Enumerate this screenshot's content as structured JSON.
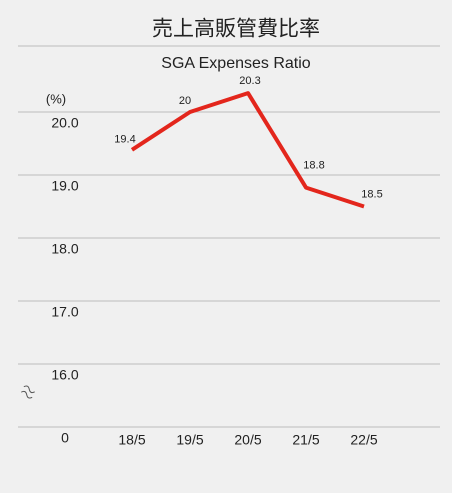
{
  "chart_data": {
    "type": "line",
    "title": "売上高販管費比率",
    "subtitle": "SGA Expenses Ratio",
    "y_unit": "(%)",
    "categories": [
      "18/5",
      "19/5",
      "20/5",
      "21/5",
      "22/5"
    ],
    "series": [
      {
        "name": "SGA Expenses Ratio",
        "color": "#e3261c",
        "values": [
          19.4,
          20.0,
          20.3,
          18.8,
          18.5
        ]
      }
    ],
    "ylim": [
      0,
      20.5
    ],
    "axis_break": [
      0,
      15
    ],
    "yticks": [
      {
        "value": 20,
        "label": "20.0"
      },
      {
        "value": 19,
        "label": "19.0"
      },
      {
        "value": 18,
        "label": "18.0"
      },
      {
        "value": 17,
        "label": "17.0"
      },
      {
        "value": 16,
        "label": "16.0"
      },
      0
    ],
    "grid": true
  }
}
